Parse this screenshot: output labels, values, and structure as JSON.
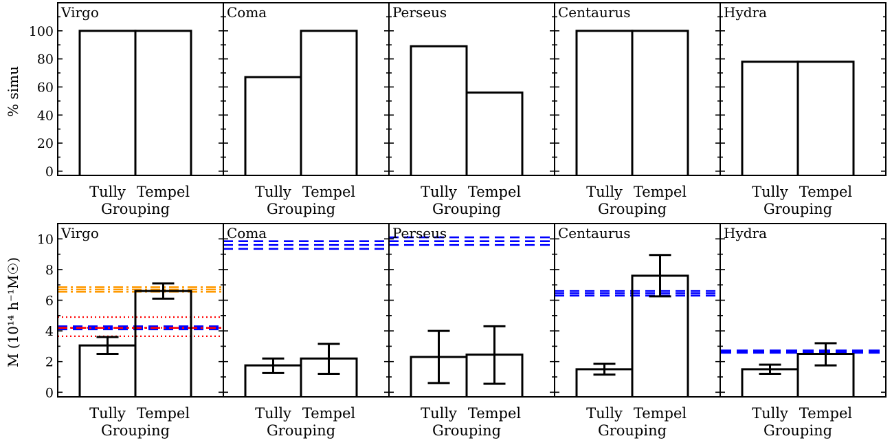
{
  "chart_data": [
    {
      "type": "bar",
      "row": "percent",
      "ylabel": "% simu",
      "ylim": [
        -3,
        120
      ],
      "yticks": [
        0,
        20,
        40,
        60,
        80,
        100
      ],
      "categories": [
        "Tully",
        "Tempel"
      ],
      "xlabel": "Grouping",
      "panels": [
        {
          "title": "Virgo",
          "values": [
            100,
            100
          ]
        },
        {
          "title": "Coma",
          "values": [
            67,
            100
          ]
        },
        {
          "title": "Perseus",
          "values": [
            89,
            56
          ]
        },
        {
          "title": "Centaurus",
          "values": [
            100,
            100
          ]
        },
        {
          "title": "Hydra",
          "values": [
            78,
            78
          ]
        }
      ]
    },
    {
      "type": "bar",
      "row": "mass",
      "ylabel": "M (10¹⁴ h⁻¹M☉)",
      "ylim": [
        -0.3,
        11
      ],
      "yticks": [
        0,
        2,
        4,
        6,
        8,
        10
      ],
      "categories": [
        "Tully",
        "Tempel"
      ],
      "xlabel": "Grouping",
      "panels": [
        {
          "title": "Virgo",
          "values": [
            3.05,
            6.6
          ],
          "errors": [
            [
              2.5,
              3.6
            ],
            [
              6.1,
              7.1
            ]
          ],
          "reference_lines": [
            {
              "color": "#ff9900",
              "style": "dashdot",
              "levels": [
                6.55,
                6.7,
                6.85
              ]
            },
            {
              "color": "#ff0000",
              "style": "dotted",
              "levels": [
                3.65,
                4.2,
                4.9
              ]
            },
            {
              "color": "#0000ff",
              "style": "dashed",
              "levels": [
                4.1,
                4.2,
                4.3
              ]
            },
            {
              "color": "#ff0000",
              "style": "dashdot",
              "levels": [
                4.2
              ]
            }
          ]
        },
        {
          "title": "Coma",
          "values": [
            1.75,
            2.2
          ],
          "errors": [
            [
              1.25,
              2.2
            ],
            [
              1.2,
              3.15
            ]
          ],
          "reference_lines": [
            {
              "color": "#0000ff",
              "style": "dashed",
              "levels": [
                9.35,
                9.6,
                9.85
              ]
            }
          ]
        },
        {
          "title": "Perseus",
          "values": [
            2.3,
            2.45
          ],
          "errors": [
            [
              0.6,
              4.0
            ],
            [
              0.55,
              4.3
            ]
          ],
          "reference_lines": [
            {
              "color": "#0000ff",
              "style": "dashed",
              "levels": [
                9.6,
                9.85,
                10.1
              ]
            }
          ]
        },
        {
          "title": "Centaurus",
          "values": [
            1.5,
            7.6
          ],
          "errors": [
            [
              1.15,
              1.85
            ],
            [
              6.25,
              8.95
            ]
          ],
          "reference_lines": [
            {
              "color": "#0000ff",
              "style": "dashed",
              "levels": [
                6.3,
                6.45,
                6.6
              ]
            }
          ]
        },
        {
          "title": "Hydra",
          "values": [
            1.5,
            2.5
          ],
          "errors": [
            [
              1.2,
              1.8
            ],
            [
              1.75,
              3.2
            ]
          ],
          "reference_lines": [
            {
              "color": "#0000ff",
              "style": "dashed-thick",
              "levels": [
                2.65
              ]
            }
          ]
        }
      ]
    }
  ]
}
